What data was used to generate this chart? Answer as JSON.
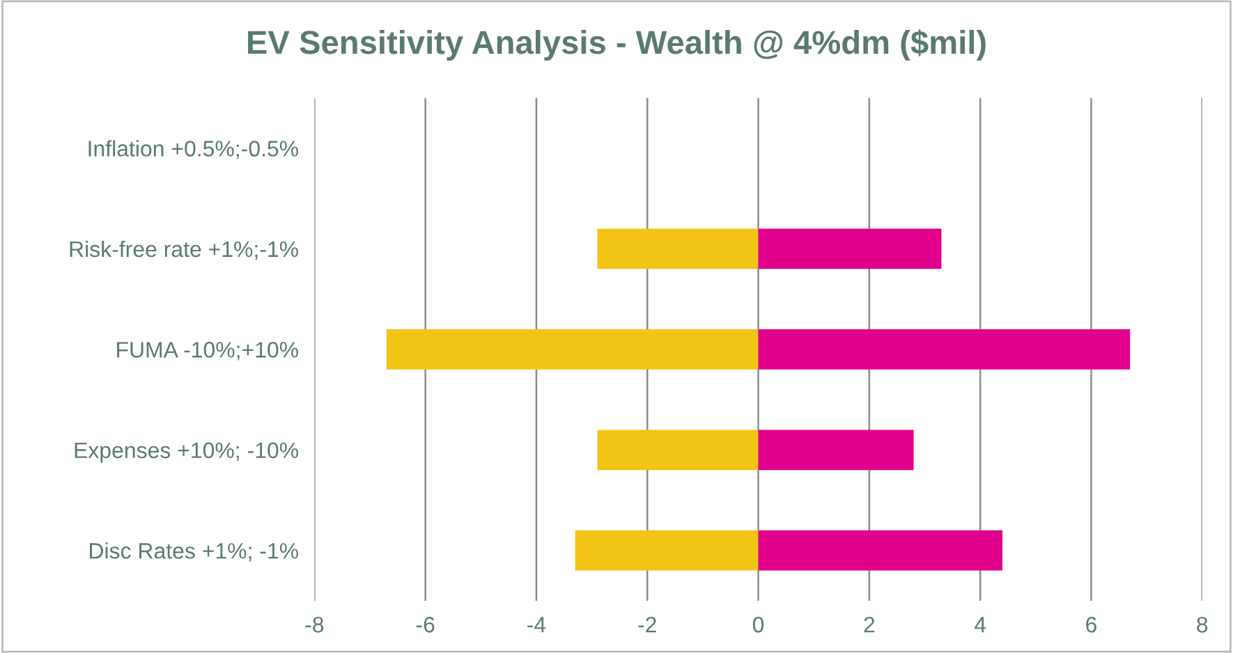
{
  "chart_data": {
    "type": "bar",
    "orientation": "horizontal",
    "title": "EV Sensitivity Analysis - Wealth @ 4%dm ($mil)",
    "categories": [
      "Inflation +0.5%;-0.5%",
      "Risk-free rate +1%;-1%",
      "FUMA -10%;+10%",
      "Expenses +10%; -10%",
      "Disc Rates +1%; -1%"
    ],
    "stacked": true,
    "series": [
      {
        "color": "#f2c416",
        "values": [
          null,
          -2.9,
          -6.7,
          -2.9,
          -3.3
        ]
      },
      {
        "color": "#e0008c",
        "values": [
          null,
          3.3,
          6.7,
          2.8,
          4.4
        ]
      }
    ],
    "xlim": [
      -8,
      8
    ],
    "xticks": [
      -8,
      -6,
      -4,
      -2,
      0,
      2,
      4,
      6,
      8
    ],
    "grid": "x"
  }
}
